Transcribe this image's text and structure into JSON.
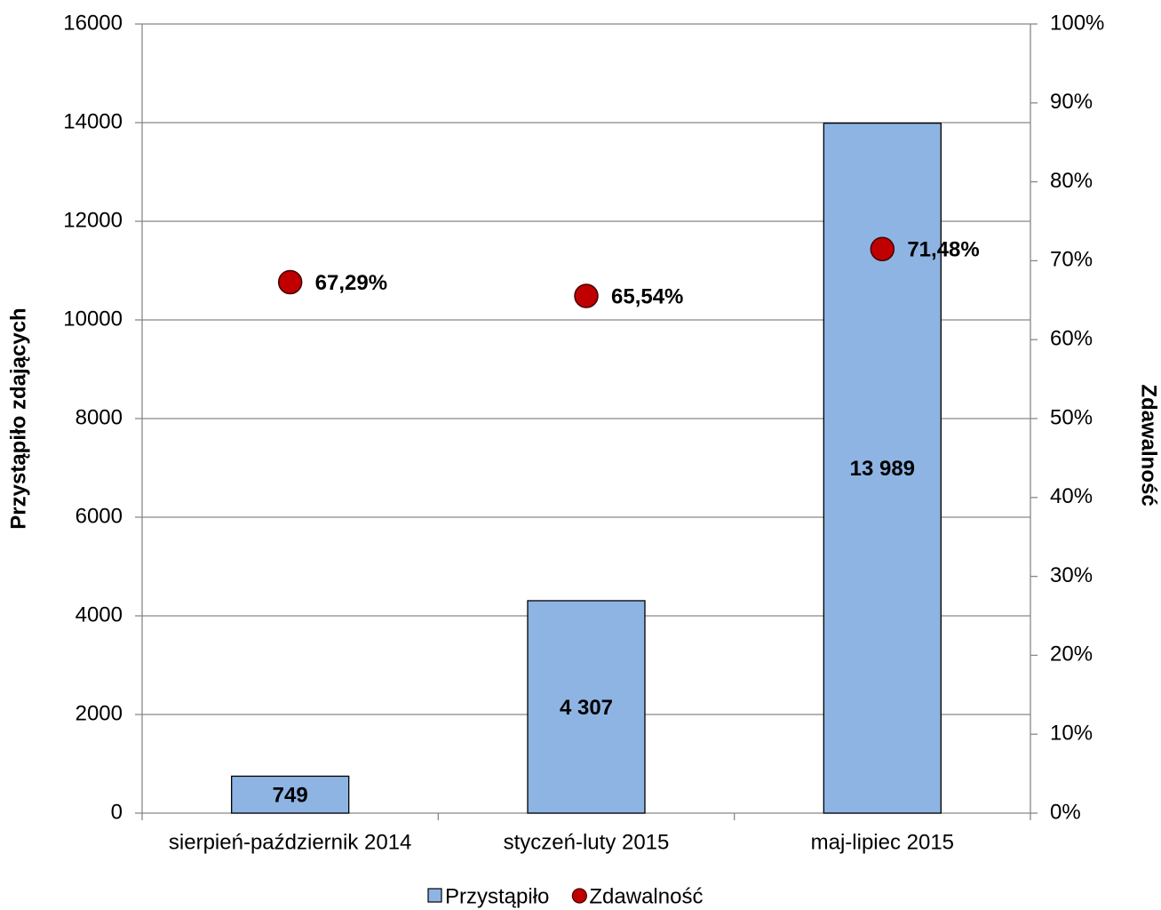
{
  "chart_data": {
    "type": "bar",
    "categories": [
      "sierpień-październik 2014",
      "styczeń-luty 2015",
      "maj-lipiec 2015"
    ],
    "series": [
      {
        "name": "Przystąpiło",
        "type": "bar",
        "color": "#8eb4e3",
        "values": [
          749,
          4307,
          13989
        ],
        "value_labels": [
          "749",
          "4 307",
          "13 989"
        ]
      },
      {
        "name": "Zdawalność",
        "type": "scatter",
        "axis": "y2",
        "color": "#c00000",
        "values": [
          67.29,
          65.54,
          71.48
        ],
        "value_labels": [
          "67,29%",
          "65,54%",
          "71,48%"
        ]
      }
    ],
    "ylabel": "Przystąpiło zdających",
    "y2label": "Zdawalność",
    "ylim": [
      0,
      16000
    ],
    "yticks": [
      0,
      2000,
      4000,
      6000,
      8000,
      10000,
      12000,
      14000,
      16000
    ],
    "y2lim": [
      0,
      100
    ],
    "y2ticks": [
      {
        "value": 0,
        "label": "0%"
      },
      {
        "value": 10,
        "label": "10%"
      },
      {
        "value": 20,
        "label": "20%"
      },
      {
        "value": 30,
        "label": "30%"
      },
      {
        "value": 40,
        "label": "40%"
      },
      {
        "value": 50,
        "label": "50%"
      },
      {
        "value": 60,
        "label": "60%"
      },
      {
        "value": 70,
        "label": "70%"
      },
      {
        "value": 80,
        "label": "80%"
      },
      {
        "value": 90,
        "label": "90%"
      },
      {
        "value": 100,
        "label": "100%"
      }
    ],
    "grid": true,
    "legend": "bottom"
  }
}
